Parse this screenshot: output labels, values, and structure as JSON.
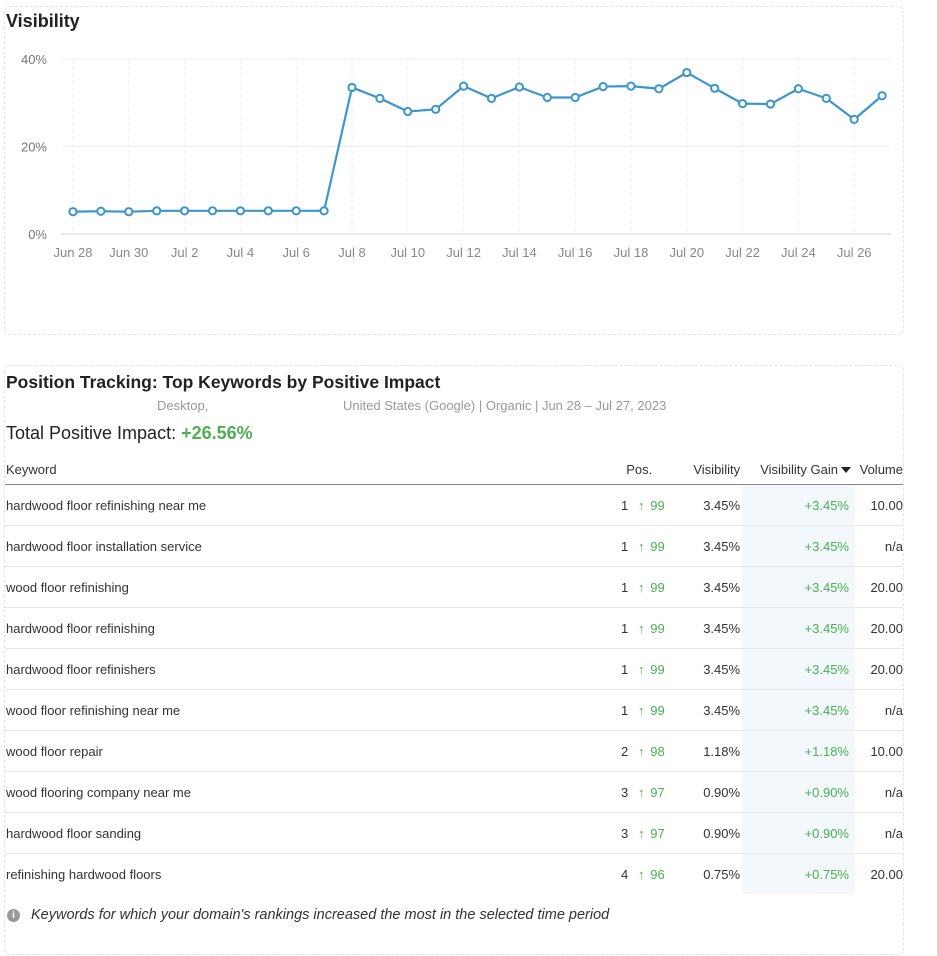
{
  "visibility": {
    "title": "Visibility"
  },
  "chart_data": {
    "type": "line",
    "title": "Visibility",
    "x": [
      "Jun 28",
      "Jun 29",
      "Jun 30",
      "Jul 1",
      "Jul 2",
      "Jul 3",
      "Jul 4",
      "Jul 5",
      "Jul 6",
      "Jul 7",
      "Jul 8",
      "Jul 9",
      "Jul 10",
      "Jul 11",
      "Jul 12",
      "Jul 13",
      "Jul 14",
      "Jul 15",
      "Jul 16",
      "Jul 17",
      "Jul 18",
      "Jul 19",
      "Jul 20",
      "Jul 21",
      "Jul 22",
      "Jul 23",
      "Jul 24",
      "Jul 25",
      "Jul 26",
      "Jul 27"
    ],
    "values": [
      5.1,
      5.2,
      5.1,
      5.3,
      5.3,
      5.3,
      5.3,
      5.3,
      5.3,
      5.3,
      33.5,
      31.0,
      28.0,
      28.5,
      33.8,
      31.0,
      33.6,
      31.2,
      31.2,
      33.7,
      33.8,
      33.2,
      36.9,
      33.3,
      29.8,
      29.7,
      33.2,
      31.0,
      26.2,
      31.6
    ],
    "xticks": [
      "Jun 28",
      "Jun 30",
      "Jul 2",
      "Jul 4",
      "Jul 6",
      "Jul 8",
      "Jul 10",
      "Jul 12",
      "Jul 14",
      "Jul 16",
      "Jul 18",
      "Jul 20",
      "Jul 22",
      "Jul 24",
      "Jul 26"
    ],
    "yticks": [
      "0%",
      "20%",
      "40%"
    ],
    "ylim": [
      0,
      40
    ],
    "grid": true,
    "color": "#3c96cc"
  },
  "tracking": {
    "title": "Position Tracking: Top Keywords by Positive Impact",
    "device": "Desktop,",
    "database": "United States (Google) | Organic | Jun 28 – Jul 27, 2023",
    "total_label": "Total Positive Impact:",
    "total_value": "+26.56%",
    "headers": {
      "keyword": "Keyword",
      "pos": "Pos.",
      "visibility": "Visibility",
      "gain": "Visibility Gain",
      "volume": "Volume"
    },
    "rows": [
      {
        "keyword": "hardwood floor refinishing near me",
        "pos": "1",
        "delta": "99",
        "visibility": "3.45%",
        "gain": "+3.45%",
        "volume": "10.00"
      },
      {
        "keyword": "hardwood floor installation service",
        "pos": "1",
        "delta": "99",
        "visibility": "3.45%",
        "gain": "+3.45%",
        "volume": "n/a"
      },
      {
        "keyword": "wood floor refinishing",
        "pos": "1",
        "delta": "99",
        "visibility": "3.45%",
        "gain": "+3.45%",
        "volume": "20.00"
      },
      {
        "keyword": "hardwood floor refinishing",
        "pos": "1",
        "delta": "99",
        "visibility": "3.45%",
        "gain": "+3.45%",
        "volume": "20.00"
      },
      {
        "keyword": "hardwood floor refinishers",
        "pos": "1",
        "delta": "99",
        "visibility": "3.45%",
        "gain": "+3.45%",
        "volume": "20.00"
      },
      {
        "keyword": "wood floor refinishing near me",
        "pos": "1",
        "delta": "99",
        "visibility": "3.45%",
        "gain": "+3.45%",
        "volume": "n/a"
      },
      {
        "keyword": "wood floor repair",
        "pos": "2",
        "delta": "98",
        "visibility": "1.18%",
        "gain": "+1.18%",
        "volume": "10.00"
      },
      {
        "keyword": "wood flooring company near me",
        "pos": "3",
        "delta": "97",
        "visibility": "0.90%",
        "gain": "+0.90%",
        "volume": "n/a"
      },
      {
        "keyword": "hardwood floor sanding",
        "pos": "3",
        "delta": "97",
        "visibility": "0.90%",
        "gain": "+0.90%",
        "volume": "n/a"
      },
      {
        "keyword": "refinishing hardwood floors",
        "pos": "4",
        "delta": "96",
        "visibility": "0.75%",
        "gain": "+0.75%",
        "volume": "20.00"
      }
    ],
    "footnote": "Keywords for which your domain's rankings increased the most in the selected time period",
    "info_icon": "info-icon",
    "up_icon": "arrow-up-icon",
    "gain_color": "#4caf50"
  }
}
